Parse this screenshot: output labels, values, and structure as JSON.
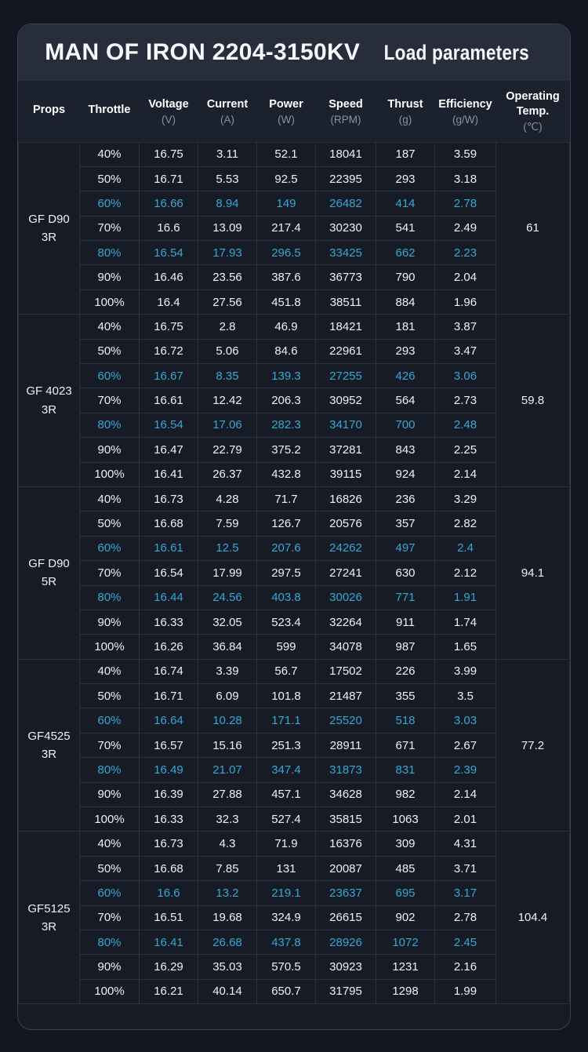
{
  "title": {
    "main": "MAN OF IRON 2204-3150KV",
    "sub": "Load parameters"
  },
  "colors": {
    "page_bg": "#121621",
    "card_bg": "#161b26",
    "card_border": "#3b414f",
    "title_bar_bg": "#272d3b",
    "header_bg": "#1b212d",
    "grid_line": "#2a303d",
    "text_primary": "#eef1f5",
    "text_unit": "#8b919d",
    "highlight_accent": "#38a7d2"
  },
  "chart_data": {
    "type": "table",
    "title": "MAN OF IRON 2204-3150KV Load parameters",
    "columns": [
      {
        "label": "Props",
        "unit": ""
      },
      {
        "label": "Throttle",
        "unit": ""
      },
      {
        "label": "Voltage",
        "unit": "(V)"
      },
      {
        "label": "Current",
        "unit": "(A)"
      },
      {
        "label": "Power",
        "unit": "(W)"
      },
      {
        "label": "Speed",
        "unit": "(RPM)"
      },
      {
        "label": "Thrust",
        "unit": "(g)"
      },
      {
        "label": "Efficiency",
        "unit": "(g/W)"
      },
      {
        "label": "Operating Temp.",
        "unit": "(℃)"
      }
    ],
    "groups": [
      {
        "prop_line1": "GF D90",
        "prop_line2": "3R",
        "operating_temp": "61",
        "rows": [
          {
            "throttle": "40%",
            "voltage": "16.75",
            "current": "3.11",
            "power": "52.1",
            "speed": "18041",
            "thrust": "187",
            "efficiency": "3.59",
            "highlight": false
          },
          {
            "throttle": "50%",
            "voltage": "16.71",
            "current": "5.53",
            "power": "92.5",
            "speed": "22395",
            "thrust": "293",
            "efficiency": "3.18",
            "highlight": false
          },
          {
            "throttle": "60%",
            "voltage": "16.66",
            "current": "8.94",
            "power": "149",
            "speed": "26482",
            "thrust": "414",
            "efficiency": "2.78",
            "highlight": true
          },
          {
            "throttle": "70%",
            "voltage": "16.6",
            "current": "13.09",
            "power": "217.4",
            "speed": "30230",
            "thrust": "541",
            "efficiency": "2.49",
            "highlight": false
          },
          {
            "throttle": "80%",
            "voltage": "16.54",
            "current": "17.93",
            "power": "296.5",
            "speed": "33425",
            "thrust": "662",
            "efficiency": "2.23",
            "highlight": true
          },
          {
            "throttle": "90%",
            "voltage": "16.46",
            "current": "23.56",
            "power": "387.6",
            "speed": "36773",
            "thrust": "790",
            "efficiency": "2.04",
            "highlight": false
          },
          {
            "throttle": "100%",
            "voltage": "16.4",
            "current": "27.56",
            "power": "451.8",
            "speed": "38511",
            "thrust": "884",
            "efficiency": "1.96",
            "highlight": false
          }
        ]
      },
      {
        "prop_line1": "GF 4023",
        "prop_line2": "3R",
        "operating_temp": "59.8",
        "rows": [
          {
            "throttle": "40%",
            "voltage": "16.75",
            "current": "2.8",
            "power": "46.9",
            "speed": "18421",
            "thrust": "181",
            "efficiency": "3.87",
            "highlight": false
          },
          {
            "throttle": "50%",
            "voltage": "16.72",
            "current": "5.06",
            "power": "84.6",
            "speed": "22961",
            "thrust": "293",
            "efficiency": "3.47",
            "highlight": false
          },
          {
            "throttle": "60%",
            "voltage": "16.67",
            "current": "8.35",
            "power": "139.3",
            "speed": "27255",
            "thrust": "426",
            "efficiency": "3.06",
            "highlight": true
          },
          {
            "throttle": "70%",
            "voltage": "16.61",
            "current": "12.42",
            "power": "206.3",
            "speed": "30952",
            "thrust": "564",
            "efficiency": "2.73",
            "highlight": false
          },
          {
            "throttle": "80%",
            "voltage": "16.54",
            "current": "17.06",
            "power": "282.3",
            "speed": "34170",
            "thrust": "700",
            "efficiency": "2.48",
            "highlight": true
          },
          {
            "throttle": "90%",
            "voltage": "16.47",
            "current": "22.79",
            "power": "375.2",
            "speed": "37281",
            "thrust": "843",
            "efficiency": "2.25",
            "highlight": false
          },
          {
            "throttle": "100%",
            "voltage": "16.41",
            "current": "26.37",
            "power": "432.8",
            "speed": "39115",
            "thrust": "924",
            "efficiency": "2.14",
            "highlight": false
          }
        ]
      },
      {
        "prop_line1": "GF D90",
        "prop_line2": "5R",
        "operating_temp": "94.1",
        "rows": [
          {
            "throttle": "40%",
            "voltage": "16.73",
            "current": "4.28",
            "power": "71.7",
            "speed": "16826",
            "thrust": "236",
            "efficiency": "3.29",
            "highlight": false
          },
          {
            "throttle": "50%",
            "voltage": "16.68",
            "current": "7.59",
            "power": "126.7",
            "speed": "20576",
            "thrust": "357",
            "efficiency": "2.82",
            "highlight": false
          },
          {
            "throttle": "60%",
            "voltage": "16.61",
            "current": "12.5",
            "power": "207.6",
            "speed": "24262",
            "thrust": "497",
            "efficiency": "2.4",
            "highlight": true
          },
          {
            "throttle": "70%",
            "voltage": "16.54",
            "current": "17.99",
            "power": "297.5",
            "speed": "27241",
            "thrust": "630",
            "efficiency": "2.12",
            "highlight": false
          },
          {
            "throttle": "80%",
            "voltage": "16.44",
            "current": "24.56",
            "power": "403.8",
            "speed": "30026",
            "thrust": "771",
            "efficiency": "1.91",
            "highlight": true
          },
          {
            "throttle": "90%",
            "voltage": "16.33",
            "current": "32.05",
            "power": "523.4",
            "speed": "32264",
            "thrust": "911",
            "efficiency": "1.74",
            "highlight": false
          },
          {
            "throttle": "100%",
            "voltage": "16.26",
            "current": "36.84",
            "power": "599",
            "speed": "34078",
            "thrust": "987",
            "efficiency": "1.65",
            "highlight": false
          }
        ]
      },
      {
        "prop_line1": "GF4525",
        "prop_line2": "3R",
        "operating_temp": "77.2",
        "rows": [
          {
            "throttle": "40%",
            "voltage": "16.74",
            "current": "3.39",
            "power": "56.7",
            "speed": "17502",
            "thrust": "226",
            "efficiency": "3.99",
            "highlight": false
          },
          {
            "throttle": "50%",
            "voltage": "16.71",
            "current": "6.09",
            "power": "101.8",
            "speed": "21487",
            "thrust": "355",
            "efficiency": "3.5",
            "highlight": false
          },
          {
            "throttle": "60%",
            "voltage": "16.64",
            "current": "10.28",
            "power": "171.1",
            "speed": "25520",
            "thrust": "518",
            "efficiency": "3.03",
            "highlight": true
          },
          {
            "throttle": "70%",
            "voltage": "16.57",
            "current": "15.16",
            "power": "251.3",
            "speed": "28911",
            "thrust": "671",
            "efficiency": "2.67",
            "highlight": false
          },
          {
            "throttle": "80%",
            "voltage": "16.49",
            "current": "21.07",
            "power": "347.4",
            "speed": "31873",
            "thrust": "831",
            "efficiency": "2.39",
            "highlight": true
          },
          {
            "throttle": "90%",
            "voltage": "16.39",
            "current": "27.88",
            "power": "457.1",
            "speed": "34628",
            "thrust": "982",
            "efficiency": "2.14",
            "highlight": false
          },
          {
            "throttle": "100%",
            "voltage": "16.33",
            "current": "32.3",
            "power": "527.4",
            "speed": "35815",
            "thrust": "1063",
            "efficiency": "2.01",
            "highlight": false
          }
        ]
      },
      {
        "prop_line1": "GF5125",
        "prop_line2": "3R",
        "operating_temp": "104.4",
        "rows": [
          {
            "throttle": "40%",
            "voltage": "16.73",
            "current": "4.3",
            "power": "71.9",
            "speed": "16376",
            "thrust": "309",
            "efficiency": "4.31",
            "highlight": false
          },
          {
            "throttle": "50%",
            "voltage": "16.68",
            "current": "7.85",
            "power": "131",
            "speed": "20087",
            "thrust": "485",
            "efficiency": "3.71",
            "highlight": false
          },
          {
            "throttle": "60%",
            "voltage": "16.6",
            "current": "13.2",
            "power": "219.1",
            "speed": "23637",
            "thrust": "695",
            "efficiency": "3.17",
            "highlight": true
          },
          {
            "throttle": "70%",
            "voltage": "16.51",
            "current": "19.68",
            "power": "324.9",
            "speed": "26615",
            "thrust": "902",
            "efficiency": "2.78",
            "highlight": false
          },
          {
            "throttle": "80%",
            "voltage": "16.41",
            "current": "26.68",
            "power": "437.8",
            "speed": "28926",
            "thrust": "1072",
            "efficiency": "2.45",
            "highlight": true
          },
          {
            "throttle": "90%",
            "voltage": "16.29",
            "current": "35.03",
            "power": "570.5",
            "speed": "30923",
            "thrust": "1231",
            "efficiency": "2.16",
            "highlight": false
          },
          {
            "throttle": "100%",
            "voltage": "16.21",
            "current": "40.14",
            "power": "650.7",
            "speed": "31795",
            "thrust": "1298",
            "efficiency": "1.99",
            "highlight": false
          }
        ]
      }
    ]
  }
}
